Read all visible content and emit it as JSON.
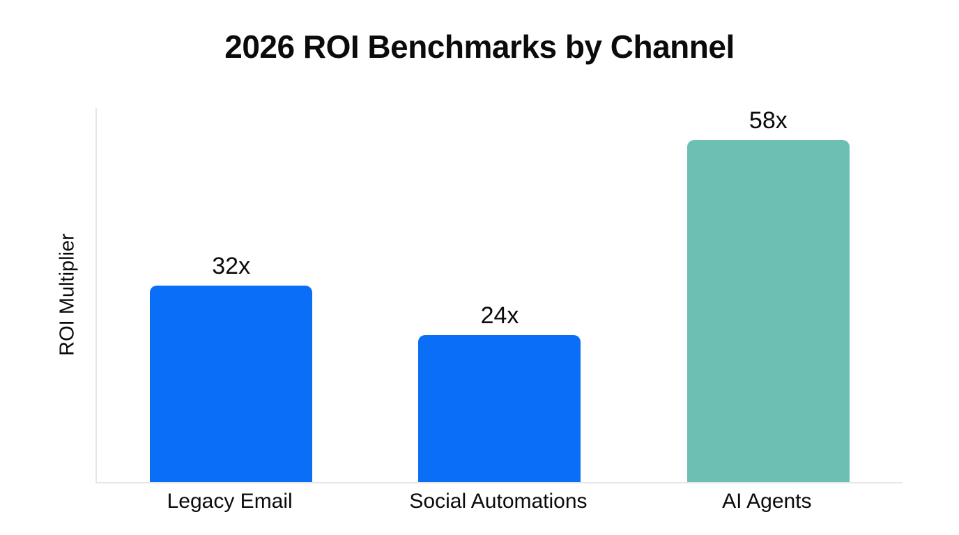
{
  "chart_data": {
    "type": "bar",
    "title": "2026 ROI Benchmarks by Channel",
    "xlabel": "",
    "ylabel": "ROI Multiplier",
    "categories": [
      "Legacy Email",
      "Social Automations",
      "AI Agents"
    ],
    "values": [
      32,
      24,
      58
    ],
    "value_labels": [
      "32x",
      "24x",
      "58x"
    ],
    "bar_colors": [
      "#0b6ef7",
      "#0b6ef7",
      "#6bc0b3"
    ],
    "ylim": [
      0,
      61
    ],
    "grid": false,
    "legend": false
  },
  "colors": {
    "background": "#ffffff",
    "axis_line": "#e7e7e7",
    "text": "#0b0b0b",
    "bar_blue": "#0b6ef7",
    "bar_teal": "#6bc0b3"
  }
}
